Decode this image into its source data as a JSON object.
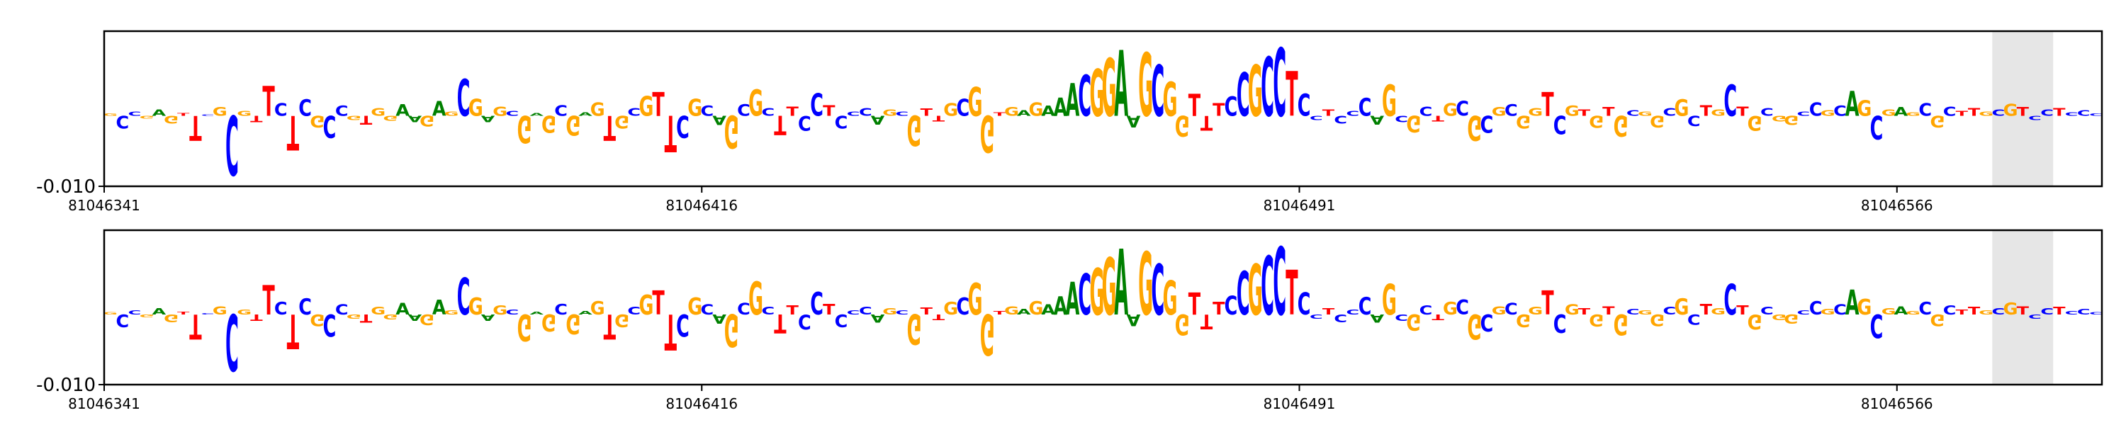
{
  "chart_data": [
    {
      "type": "sequence-logo",
      "panel": "top",
      "sequence": "GCCGAGTTCGCGTTCTCGCCGTGGAAGAGCGAGCGAGCGAGTGCGTTCGCAGCGCTTCCTCCCAGCGTTGCGGTGAGAAACGGAAGCGGTTTCCGCCTCCTCCCAGCGCTGCGCGCGGTCGTGTGCGGCGCTGCTGCGGCCGCAGCGAGCGCTTGCGTCCTCCC",
      "position_ticks": [
        "81046341",
        "81046416",
        "81046491",
        "81046566"
      ],
      "tick_positions": [
        0,
        75,
        150,
        225
      ],
      "ytick_label": "-0.010",
      "ylim": [
        -0.01,
        0.012
      ],
      "highlight_range": [
        155,
        160
      ],
      "scores": [
        0.0003,
        -0.0018,
        0.0006,
        -0.0004,
        0.0009,
        -0.0011,
        0.0004,
        -0.0035,
        0.0002,
        0.0012,
        -0.0084,
        0.0007,
        -0.0009,
        0.0042,
        0.0018,
        -0.0049,
        0.0023,
        -0.0016,
        -0.0031,
        0.0014,
        -0.0006,
        -0.0012,
        0.0011,
        -0.0007,
        0.0016,
        -0.0009,
        -0.0015,
        0.0021,
        0.0006,
        0.0052,
        0.0024,
        -0.0009,
        0.0013,
        0.0007,
        -0.0038,
        0.0004,
        -0.0024,
        0.0015,
        -0.0028,
        0.0005,
        0.0019,
        -0.0035,
        -0.0018,
        0.0011,
        0.0028,
        0.0034,
        -0.0051,
        -0.0031,
        0.0024,
        0.0014,
        -0.0013,
        -0.0046,
        0.0016,
        0.0037,
        0.0011,
        -0.0027,
        0.0013,
        -0.0021,
        0.0032,
        0.0015,
        -0.0018,
        0.0006,
        0.0011,
        -0.0012,
        0.0009,
        0.0006,
        -0.0043,
        0.001,
        -0.0008,
        0.0018,
        0.0024,
        0.0041,
        -0.0052,
        0.0005,
        0.0012,
        0.0008,
        0.0019,
        0.0014,
        0.0026,
        0.0046,
        0.0058,
        0.0066,
        0.0081,
        0.0093,
        -0.0016,
        0.0089,
        0.0072,
        0.0048,
        -0.0029,
        0.0031,
        -0.0021,
        0.0018,
        0.0027,
        0.0061,
        0.0072,
        0.0083,
        0.0096,
        0.0063,
        0.0031,
        -0.0006,
        0.0009,
        -0.0011,
        0.0007,
        0.0025,
        -0.0012,
        0.0044,
        -0.0009,
        -0.0023,
        0.0013,
        -0.0008,
        0.0018,
        0.0021,
        -0.0035,
        -0.0024,
        0.0012,
        0.0016,
        -0.0018,
        0.0011,
        0.0034,
        -0.0026,
        0.0014,
        0.0009,
        -0.0017,
        0.0012,
        -0.0029,
        0.0008,
        0.0006,
        -0.0016,
        0.0011,
        0.0023,
        -0.0014,
        0.0015,
        0.0009,
        0.0044,
        0.0013,
        -0.0021,
        0.0011,
        -0.0008,
        -0.0013,
        0.0006,
        0.0019,
        0.0008,
        0.0014,
        0.0035,
        0.0022,
        -0.0033,
        0.0009,
        0.0012,
        0.0005,
        0.0018,
        -0.0016,
        0.0013,
        0.0007,
        0.0011,
        0.0006,
        0.0009,
        0.0017,
        0.0012,
        -0.0006,
        0.0009,
        0.0011,
        0.0005,
        0.0008
      ]
    },
    {
      "type": "sequence-logo",
      "panel": "bottom",
      "sequence": "GCCGAGTTCGCGTTCTCGCCGTGGAAGAGCGAGCGAGCGAGTGCGTTCGCAGCGCTTCCTCCCAGCGTTGCGGTGAGAAACGGAAGCGGTTTCCGCCTCCTCCCAGCGCTGCGCGCGGTCGTGTGCGGCGCTGCTGCGGCCGCAGCGAGCGCTTGCGTCCTCCC",
      "position_ticks": [
        "81046341",
        "81046416",
        "81046491",
        "81046566"
      ],
      "tick_positions": [
        0,
        75,
        150,
        225
      ],
      "ytick_label": "-0.010",
      "ylim": [
        -0.01,
        0.012
      ],
      "highlight_range": [
        155,
        160
      ],
      "scores": [
        0.0003,
        -0.0018,
        0.0006,
        -0.0004,
        0.0009,
        -0.0011,
        0.0004,
        -0.0035,
        0.0002,
        0.0012,
        -0.008,
        0.0007,
        -0.0009,
        0.0042,
        0.0018,
        -0.0049,
        0.0023,
        -0.0016,
        -0.0031,
        0.0014,
        -0.0006,
        -0.0012,
        0.0011,
        -0.0007,
        0.0016,
        -0.0009,
        -0.0015,
        0.0021,
        0.0006,
        0.0052,
        0.0024,
        -0.0009,
        0.0013,
        0.0007,
        -0.0038,
        0.0004,
        -0.0024,
        0.0015,
        -0.0028,
        0.0005,
        0.0019,
        -0.0035,
        -0.0018,
        0.0011,
        0.0028,
        0.0034,
        -0.0051,
        -0.0031,
        0.0024,
        0.0014,
        -0.0013,
        -0.0046,
        0.0016,
        0.0047,
        0.0011,
        -0.0027,
        0.0013,
        -0.0021,
        0.0032,
        0.0015,
        -0.0018,
        0.0006,
        0.0011,
        -0.0012,
        0.0009,
        0.0006,
        -0.0043,
        0.001,
        -0.0008,
        0.0018,
        0.0024,
        0.0045,
        -0.0058,
        0.0005,
        0.0012,
        0.0008,
        0.0019,
        0.0014,
        0.0026,
        0.0046,
        0.0058,
        0.0066,
        0.0081,
        0.0093,
        -0.0016,
        0.0089,
        0.0072,
        0.0048,
        -0.0029,
        0.0031,
        -0.0021,
        0.0018,
        0.0027,
        0.0061,
        0.0072,
        0.0083,
        0.0096,
        0.0063,
        0.0031,
        -0.0006,
        0.0009,
        -0.0011,
        0.0007,
        0.0025,
        -0.0012,
        0.0044,
        -0.0009,
        -0.0023,
        0.0013,
        -0.0008,
        0.0018,
        0.0021,
        -0.0035,
        -0.0024,
        0.0012,
        0.0016,
        -0.0018,
        0.0011,
        0.0034,
        -0.0026,
        0.0014,
        0.0009,
        -0.0017,
        0.0012,
        -0.0029,
        0.0008,
        0.0006,
        -0.0016,
        0.0011,
        0.0023,
        -0.0014,
        0.0015,
        0.0009,
        0.0044,
        0.0013,
        -0.0021,
        0.0011,
        -0.0008,
        -0.0013,
        0.0006,
        0.0019,
        0.0008,
        0.0014,
        0.0035,
        0.0022,
        -0.0033,
        0.0009,
        0.0012,
        0.0005,
        0.0018,
        -0.0016,
        0.0013,
        0.0007,
        0.0011,
        0.0006,
        0.0009,
        0.0017,
        0.0012,
        -0.0006,
        0.0009,
        0.0011,
        0.0005,
        0.0008
      ]
    }
  ],
  "colors": {
    "A": "#008000",
    "C": "#0000ff",
    "G": "#ffa500",
    "T": "#ff0000",
    "highlight": "#e6e6e6",
    "axis": "#000000"
  }
}
